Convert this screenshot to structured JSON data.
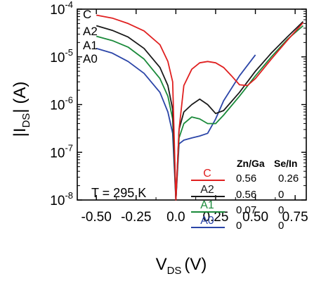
{
  "chart_data": {
    "type": "line",
    "xlabel": "V",
    "xlabel_sub": "DS",
    "xlabel_unit": "(V)",
    "ylabel": "|I",
    "ylabel_sub": "DS",
    "ylabel_unit": "| (A)",
    "x_tick_labels": [
      "-0.50",
      "-0.25",
      "0.0",
      "0.25",
      "0.50",
      "0.75"
    ],
    "y_tick_labels": [
      {
        "base": "10",
        "exp": "-8"
      },
      {
        "base": "10",
        "exp": "-7"
      },
      {
        "base": "10",
        "exp": "-6"
      },
      {
        "base": "10",
        "exp": "-5"
      },
      {
        "base": "10",
        "exp": "-4"
      }
    ],
    "xlim": [
      -0.62,
      0.82
    ],
    "ylim": [
      1e-08,
      0.0001
    ],
    "y_scale": "log",
    "annotation": "T = 295 K",
    "legend_placement": "bottom-right",
    "legend_headers": [
      "Zn/Ga",
      "Se/In"
    ],
    "series": [
      {
        "name": "C",
        "color": "#e02020",
        "zn_ga": "0.56",
        "se_in": "0.26",
        "points": [
          [
            -0.5,
            7.5e-05
          ],
          [
            -0.4,
            6.5e-05
          ],
          [
            -0.3,
            5e-05
          ],
          [
            -0.2,
            3.5e-05
          ],
          [
            -0.1,
            1.8e-05
          ],
          [
            -0.05,
            8e-06
          ],
          [
            -0.02,
            3e-06
          ],
          [
            0.0,
            1e-08
          ],
          [
            0.02,
            3e-07
          ],
          [
            0.05,
            2.5e-06
          ],
          [
            0.1,
            5.5e-06
          ],
          [
            0.15,
            7.5e-06
          ],
          [
            0.2,
            8e-06
          ],
          [
            0.25,
            7.5e-06
          ],
          [
            0.3,
            6e-06
          ],
          [
            0.35,
            4e-06
          ],
          [
            0.4,
            2.6e-06
          ],
          [
            0.45,
            2.5e-06
          ],
          [
            0.5,
            3.5e-06
          ],
          [
            0.6,
            9e-06
          ],
          [
            0.7,
            2.2e-05
          ],
          [
            0.8,
            5.2e-05
          ]
        ]
      },
      {
        "name": "A2",
        "color": "#1a1a1a",
        "zn_ga": "0.56",
        "se_in": "0",
        "points": [
          [
            -0.5,
            4.5e-05
          ],
          [
            -0.4,
            3.6e-05
          ],
          [
            -0.3,
            2.6e-05
          ],
          [
            -0.2,
            1.5e-05
          ],
          [
            -0.1,
            6e-06
          ],
          [
            -0.05,
            2.5e-06
          ],
          [
            -0.02,
            8e-07
          ],
          [
            0.0,
            1e-08
          ],
          [
            0.02,
            3e-07
          ],
          [
            0.05,
            7e-07
          ],
          [
            0.1,
            1e-06
          ],
          [
            0.15,
            1.3e-06
          ],
          [
            0.2,
            1e-06
          ],
          [
            0.25,
            6.5e-07
          ],
          [
            0.3,
            7.5e-07
          ],
          [
            0.4,
            1.8e-06
          ],
          [
            0.5,
            5e-06
          ],
          [
            0.6,
            1.2e-05
          ],
          [
            0.7,
            2.6e-05
          ],
          [
            0.8,
            5.5e-05
          ]
        ]
      },
      {
        "name": "A1",
        "color": "#1a8a3a",
        "zn_ga": "0.07",
        "se_in": "0",
        "points": [
          [
            -0.5,
            2.7e-05
          ],
          [
            -0.4,
            2.2e-05
          ],
          [
            -0.3,
            1.6e-05
          ],
          [
            -0.2,
            9e-06
          ],
          [
            -0.1,
            3.5e-06
          ],
          [
            -0.05,
            1.5e-06
          ],
          [
            -0.02,
            5e-07
          ],
          [
            0.0,
            1e-08
          ],
          [
            0.02,
            2e-07
          ],
          [
            0.05,
            4e-07
          ],
          [
            0.1,
            5.5e-07
          ],
          [
            0.15,
            5e-07
          ],
          [
            0.2,
            4e-07
          ],
          [
            0.25,
            4e-07
          ],
          [
            0.3,
            6e-07
          ],
          [
            0.4,
            1.5e-06
          ],
          [
            0.5,
            4e-06
          ],
          [
            0.6,
            1e-05
          ],
          [
            0.7,
            2.3e-05
          ],
          [
            0.8,
            4.5e-05
          ]
        ]
      },
      {
        "name": "A0",
        "color": "#2b45a8",
        "zn_ga": "0",
        "se_in": "0",
        "points": [
          [
            -0.5,
            1.5e-05
          ],
          [
            -0.4,
            1.2e-05
          ],
          [
            -0.3,
            8e-06
          ],
          [
            -0.2,
            4.5e-06
          ],
          [
            -0.1,
            1.8e-06
          ],
          [
            -0.05,
            7e-07
          ],
          [
            -0.02,
            2.5e-07
          ],
          [
            0.0,
            1e-08
          ],
          [
            0.02,
            1.5e-07
          ],
          [
            0.05,
            1.8e-07
          ],
          [
            0.1,
            2e-07
          ],
          [
            0.15,
            2.2e-07
          ],
          [
            0.2,
            2.5e-07
          ],
          [
            0.25,
            5e-07
          ],
          [
            0.3,
            1.2e-06
          ],
          [
            0.4,
            4e-06
          ],
          [
            0.5,
            1.1e-05
          ]
        ]
      }
    ]
  }
}
